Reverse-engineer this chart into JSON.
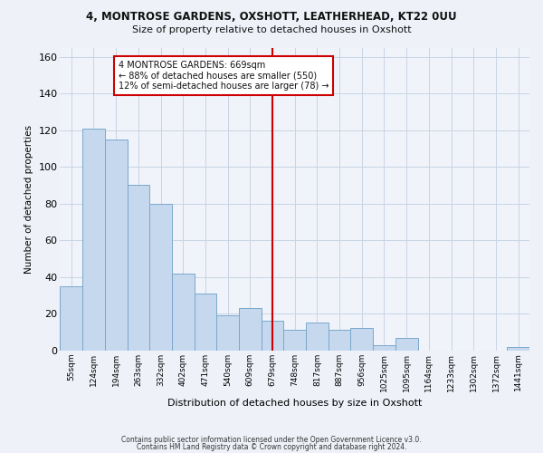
{
  "title_line1": "4, MONTROSE GARDENS, OXSHOTT, LEATHERHEAD, KT22 0UU",
  "title_line2": "Size of property relative to detached houses in Oxshott",
  "xlabel": "Distribution of detached houses by size in Oxshott",
  "ylabel": "Number of detached properties",
  "bar_labels": [
    "55sqm",
    "124sqm",
    "194sqm",
    "263sqm",
    "332sqm",
    "402sqm",
    "471sqm",
    "540sqm",
    "609sqm",
    "679sqm",
    "748sqm",
    "817sqm",
    "887sqm",
    "956sqm",
    "1025sqm",
    "1095sqm",
    "1164sqm",
    "1233sqm",
    "1302sqm",
    "1372sqm",
    "1441sqm"
  ],
  "bar_heights": [
    35,
    121,
    115,
    90,
    80,
    42,
    31,
    19,
    23,
    16,
    11,
    15,
    11,
    12,
    3,
    7,
    0,
    0,
    0,
    0,
    2
  ],
  "bar_color": "#c5d8ee",
  "bar_edge_color": "#7aA8cc",
  "grid_color": "#c8d4e4",
  "vline_x_bar_idx": 9,
  "vline_color": "#cc0000",
  "annotation_text": "4 MONTROSE GARDENS: 669sqm\n← 88% of detached houses are smaller (550)\n12% of semi-detached houses are larger (78) →",
  "annotation_box_color": "#cc0000",
  "ylim": [
    0,
    165
  ],
  "yticks": [
    0,
    20,
    40,
    60,
    80,
    100,
    120,
    140,
    160
  ],
  "footnote_line1": "Contains HM Land Registry data © Crown copyright and database right 2024.",
  "footnote_line2": "Contains public sector information licensed under the Open Government Licence v3.0.",
  "bg_color": "#eef2f8",
  "plot_bg_color": "#f0f4fa"
}
